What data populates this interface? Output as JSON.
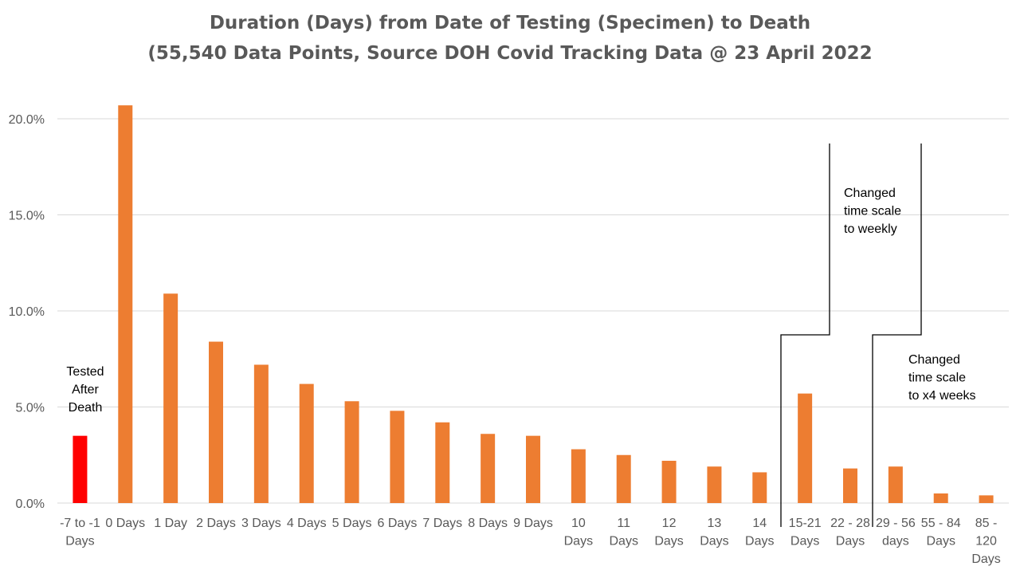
{
  "chart_data": {
    "type": "bar",
    "title": "Duration (Days) from Date of Testing (Specimen) to Death",
    "subtitle": "(55,540 Data Points, Source DOH Covid Tracking Data @ 23 April 2022",
    "xlabel": "",
    "ylabel": "",
    "ylim": [
      0,
      0.22
    ],
    "yticks": [
      {
        "value": 0.0,
        "label": "0.0%"
      },
      {
        "value": 0.05,
        "label": "5.0%"
      },
      {
        "value": 0.1,
        "label": "10.0%"
      },
      {
        "value": 0.15,
        "label": "15.0%"
      },
      {
        "value": 0.2,
        "label": "20.0%"
      }
    ],
    "grid": true,
    "legend": "none",
    "categories": [
      "-7 to -1 Days",
      "0 Days",
      "1 Day",
      "2 Days",
      "3 Days",
      "4 Days",
      "5 Days",
      "6 Days",
      "7 Days",
      "8 Days",
      "9 Days",
      "10 Days",
      "11 Days",
      "12 Days",
      "13 Days",
      "14 Days",
      "15-21 Days",
      "22 - 28 Days",
      "29 - 56 days",
      "55 - 84 Days",
      "85 - 120 Days"
    ],
    "category_label_lines": [
      [
        "-7 to -1",
        "Days"
      ],
      [
        "0 Days"
      ],
      [
        "1 Day"
      ],
      [
        "2 Days"
      ],
      [
        "3 Days"
      ],
      [
        "4 Days"
      ],
      [
        "5 Days"
      ],
      [
        "6 Days"
      ],
      [
        "7 Days"
      ],
      [
        "8 Days"
      ],
      [
        "9 Days"
      ],
      [
        "10",
        "Days"
      ],
      [
        "11",
        "Days"
      ],
      [
        "12",
        "Days"
      ],
      [
        "13",
        "Days"
      ],
      [
        "14",
        "Days"
      ],
      [
        "15-21",
        "Days"
      ],
      [
        "22 - 28",
        "Days"
      ],
      [
        "29 - 56",
        "days"
      ],
      [
        "55 - 84",
        "Days"
      ],
      [
        "85 -",
        "120",
        "Days"
      ]
    ],
    "values": [
      0.035,
      0.207,
      0.109,
      0.084,
      0.072,
      0.062,
      0.053,
      0.048,
      0.042,
      0.036,
      0.035,
      0.028,
      0.025,
      0.022,
      0.019,
      0.016,
      0.057,
      0.018,
      0.019,
      0.005,
      0.004
    ],
    "bar_colors": [
      "#ff0000",
      "#ed7d31",
      "#ed7d31",
      "#ed7d31",
      "#ed7d31",
      "#ed7d31",
      "#ed7d31",
      "#ed7d31",
      "#ed7d31",
      "#ed7d31",
      "#ed7d31",
      "#ed7d31",
      "#ed7d31",
      "#ed7d31",
      "#ed7d31",
      "#ed7d31",
      "#ed7d31",
      "#ed7d31",
      "#ed7d31",
      "#ed7d31",
      "#ed7d31"
    ],
    "annotations": [
      {
        "text_lines": [
          "Tested",
          "After",
          "Death"
        ]
      },
      {
        "text_lines": [
          "Changed",
          "time scale",
          "to weekly"
        ]
      },
      {
        "text_lines": [
          "Changed",
          "time scale",
          "to x4 weeks"
        ]
      }
    ]
  },
  "colors": {
    "accent": "#ed7d31",
    "highlight": "#ff0000",
    "text": "#595959",
    "grid": "#d9d9d9"
  }
}
